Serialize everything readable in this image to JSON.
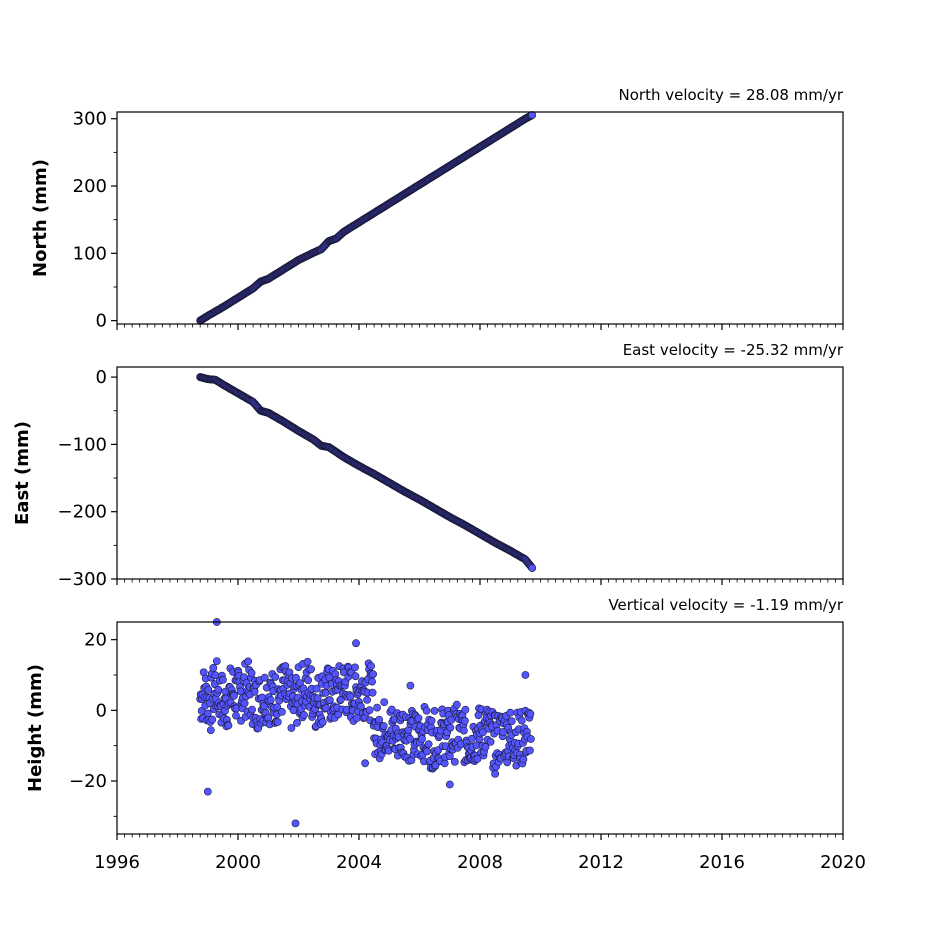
{
  "chart_data": [
    {
      "type": "scatter",
      "panel": "north",
      "title": "North velocity = 28.08 mm/yr",
      "ylabel": "North (mm)",
      "xlim": [
        1996,
        2020
      ],
      "ylim": [
        -5,
        310
      ],
      "yticks": [
        0,
        100,
        200,
        300
      ],
      "ytick_labels": [
        "0",
        "100",
        "200",
        "300"
      ],
      "grid": false,
      "marker_color": "#5555ff",
      "edge_color": "#1a1a3a",
      "velocity_mm_per_yr": 28.08,
      "points_x": [
        1998.75,
        1999.0,
        1999.5,
        2000.0,
        2000.5,
        2000.75,
        2001.0,
        2001.5,
        2002.0,
        2002.5,
        2002.75,
        2003.0,
        2003.25,
        2003.5,
        2004.0,
        2004.5,
        2005.0,
        2005.5,
        2006.0,
        2006.5,
        2007.0,
        2007.5,
        2008.0,
        2008.5,
        2009.0,
        2009.5,
        2009.75
      ],
      "points_y": [
        0,
        7,
        20,
        34,
        48,
        58,
        62,
        76,
        90,
        101,
        106,
        118,
        122,
        132,
        146,
        160,
        174,
        188,
        202,
        216,
        230,
        244,
        258,
        272,
        286,
        300,
        306
      ]
    },
    {
      "type": "scatter",
      "panel": "east",
      "title": "East velocity = -25.32 mm/yr",
      "ylabel": "East (mm)",
      "xlim": [
        1996,
        2020
      ],
      "ylim": [
        -300,
        15
      ],
      "yticks": [
        0,
        -100,
        -200,
        -300
      ],
      "ytick_labels": [
        "0",
        "−100",
        "−200",
        "−300"
      ],
      "grid": false,
      "marker_color": "#5555ff",
      "edge_color": "#1a1a3a",
      "velocity_mm_per_yr": -25.32,
      "points_x": [
        1998.75,
        1999.0,
        1999.25,
        1999.5,
        2000.0,
        2000.5,
        2000.75,
        2001.0,
        2001.5,
        2002.0,
        2002.5,
        2002.75,
        2003.0,
        2003.5,
        2004.0,
        2004.5,
        2005.0,
        2005.5,
        2006.0,
        2006.5,
        2007.0,
        2007.5,
        2008.0,
        2008.5,
        2009.0,
        2009.5,
        2009.75
      ],
      "points_y": [
        0,
        -3,
        -4,
        -11,
        -24,
        -37,
        -50,
        -53,
        -66,
        -80,
        -93,
        -102,
        -104,
        -119,
        -132,
        -144,
        -157,
        -170,
        -182,
        -195,
        -208,
        -220,
        -233,
        -246,
        -258,
        -271,
        -285
      ]
    },
    {
      "type": "scatter",
      "panel": "height",
      "title": "Vertical velocity = -1.19 mm/yr",
      "ylabel": "Height (mm)",
      "xlim": [
        1996,
        2020
      ],
      "ylim": [
        -35,
        25
      ],
      "yticks": [
        20,
        0,
        -20
      ],
      "ytick_labels": [
        "20",
        "0",
        "−20"
      ],
      "grid": false,
      "marker_color": "#5555ff",
      "edge_color": "#1a1a3a",
      "velocity_mm_per_yr": -1.19,
      "points_x": [
        1998.75,
        1998.9,
        1999.1,
        1999.25,
        1999.4,
        1999.6,
        1999.8,
        2000.0,
        2000.3,
        2000.6,
        2000.9,
        2001.2,
        2001.5,
        2001.8,
        2002.0,
        2002.3,
        2002.6,
        2002.9,
        2003.2,
        2003.5,
        2003.8,
        2004.0,
        2004.3,
        2004.6,
        2004.9,
        2005.2,
        2005.5,
        2005.8,
        2006.1,
        2006.4,
        2006.7,
        2007.0,
        2007.3,
        2007.6,
        2007.9,
        2008.2,
        2008.5,
        2008.8,
        2009.1,
        2009.4,
        2009.7,
        1999.0,
        1999.3,
        2001.9,
        2003.9,
        2007.0,
        2008.5,
        2009.5,
        2004.2,
        2005.7
      ],
      "points_y": [
        1,
        6,
        -4,
        12,
        3,
        -6,
        8,
        2,
        10,
        -3,
        5,
        0,
        9,
        -5,
        4,
        12,
        -2,
        6,
        1,
        11,
        3,
        7,
        9,
        -4,
        2,
        -6,
        0,
        -9,
        -3,
        -11,
        -5,
        -8,
        -2,
        -10,
        -6,
        -1,
        -12,
        -4,
        -7,
        -9,
        2,
        -23,
        25,
        -32,
        19,
        -21,
        -18,
        10,
        -15,
        7
      ]
    }
  ],
  "x_axis": {
    "ticks": [
      1996,
      2000,
      2004,
      2008,
      2012,
      2016,
      2020
    ],
    "tick_labels": [
      "1996",
      "2000",
      "2004",
      "2008",
      "2012",
      "2016",
      "2020"
    ],
    "minor_step_years": 0.25
  }
}
